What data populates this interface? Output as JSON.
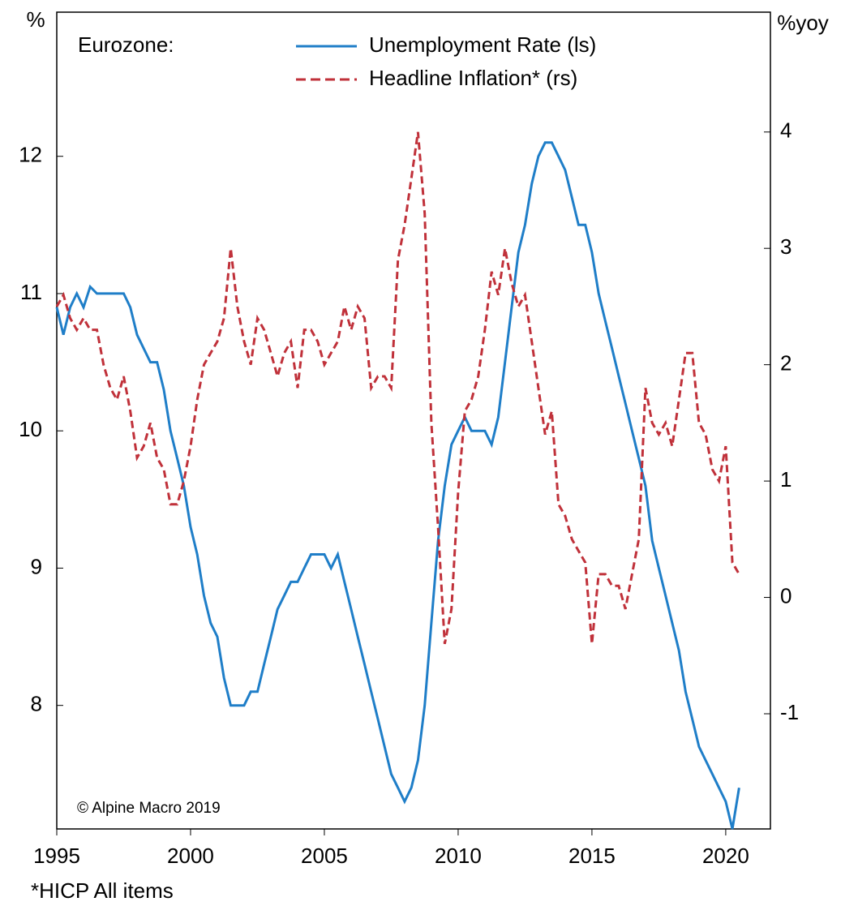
{
  "chart_data": {
    "type": "line",
    "label": "Eurozone:",
    "y_unit": "%",
    "y2_unit": "%yoy",
    "annotation": "© Alpine Macro 2019",
    "footnote": "*HICP All items",
    "x": [
      1995,
      1995.25,
      1995.5,
      1995.75,
      1996,
      1996.25,
      1996.5,
      1996.75,
      1997,
      1997.25,
      1997.5,
      1997.75,
      1998,
      1998.25,
      1998.5,
      1998.75,
      1999,
      1999.25,
      1999.5,
      1999.75,
      2000,
      2000.25,
      2000.5,
      2000.75,
      2001,
      2001.25,
      2001.5,
      2001.75,
      2002,
      2002.25,
      2002.5,
      2002.75,
      2003,
      2003.25,
      2003.5,
      2003.75,
      2004,
      2004.25,
      2004.5,
      2004.75,
      2005,
      2005.25,
      2005.5,
      2005.75,
      2006,
      2006.25,
      2006.5,
      2006.75,
      2007,
      2007.25,
      2007.5,
      2007.75,
      2008,
      2008.25,
      2008.5,
      2008.75,
      2009,
      2009.25,
      2009.5,
      2009.75,
      2010,
      2010.25,
      2010.5,
      2010.75,
      2011,
      2011.25,
      2011.5,
      2011.75,
      2012,
      2012.25,
      2012.5,
      2012.75,
      2013,
      2013.25,
      2013.5,
      2013.75,
      2014,
      2014.25,
      2014.5,
      2014.75,
      2015,
      2015.25,
      2015.5,
      2015.75,
      2016,
      2016.25,
      2016.5,
      2016.75,
      2017,
      2017.25,
      2017.5,
      2017.75,
      2018,
      2018.25,
      2018.5,
      2018.75,
      2019,
      2019.25,
      2019.5,
      2019.75,
      2020,
      2020.25,
      2020.5
    ],
    "series": [
      {
        "name": "Unemployment Rate (ls)",
        "color": "#1f7ec8",
        "dash": false,
        "values": [
          10.9,
          10.7,
          10.9,
          11.0,
          10.9,
          11.05,
          11.0,
          11.0,
          11.0,
          11.0,
          11.0,
          10.9,
          10.7,
          10.6,
          10.5,
          10.5,
          10.3,
          10.0,
          9.8,
          9.6,
          9.3,
          9.1,
          8.8,
          8.6,
          8.5,
          8.2,
          8.0,
          8.0,
          8.0,
          8.1,
          8.1,
          8.3,
          8.5,
          8.7,
          8.8,
          8.9,
          8.9,
          9.0,
          9.1,
          9.1,
          9.1,
          9.0,
          9.1,
          8.9,
          8.7,
          8.5,
          8.3,
          8.1,
          7.9,
          7.7,
          7.5,
          7.4,
          7.3,
          7.4,
          7.6,
          8.0,
          8.6,
          9.2,
          9.6,
          9.9,
          10.0,
          10.1,
          10.0,
          10.0,
          10.0,
          9.9,
          10.1,
          10.5,
          10.9,
          11.3,
          11.5,
          11.8,
          12.0,
          12.1,
          12.1,
          12.0,
          11.9,
          11.7,
          11.5,
          11.5,
          11.3,
          11.0,
          10.8,
          10.6,
          10.4,
          10.2,
          10.0,
          9.8,
          9.6,
          9.2,
          9.0,
          8.8,
          8.6,
          8.4,
          8.1,
          7.9,
          7.7,
          7.6,
          7.5,
          7.4,
          7.3,
          7.1,
          7.4
        ]
      },
      {
        "name": "Headline Inflation* (rs)",
        "color": "#c0313a",
        "dash": true,
        "axis": "y2",
        "values": [
          2.5,
          2.6,
          2.4,
          2.3,
          2.4,
          2.3,
          2.3,
          2.0,
          1.8,
          1.7,
          1.9,
          1.6,
          1.2,
          1.3,
          1.5,
          1.2,
          1.1,
          0.8,
          0.8,
          1.0,
          1.3,
          1.7,
          2.0,
          2.1,
          2.2,
          2.4,
          3.0,
          2.5,
          2.2,
          2.0,
          2.4,
          2.3,
          2.1,
          1.9,
          2.1,
          2.2,
          1.8,
          2.3,
          2.3,
          2.2,
          2.0,
          2.1,
          2.2,
          2.5,
          2.3,
          2.5,
          2.4,
          1.8,
          1.9,
          1.9,
          1.8,
          2.9,
          3.2,
          3.6,
          4.0,
          3.3,
          1.5,
          0.6,
          -0.4,
          -0.1,
          0.9,
          1.6,
          1.7,
          1.9,
          2.3,
          2.8,
          2.6,
          3.0,
          2.7,
          2.5,
          2.6,
          2.2,
          1.8,
          1.4,
          1.6,
          0.8,
          0.7,
          0.5,
          0.4,
          0.3,
          -0.4,
          0.2,
          0.2,
          0.1,
          0.1,
          -0.1,
          0.2,
          0.5,
          1.8,
          1.5,
          1.4,
          1.5,
          1.3,
          1.7,
          2.1,
          2.1,
          1.5,
          1.4,
          1.1,
          1.0,
          1.3,
          0.3,
          0.2
        ]
      }
    ],
    "xlim": [
      1995,
      2021.67
    ],
    "xticks": [
      1995,
      2000,
      2005,
      2010,
      2015,
      2020
    ],
    "ylim": [
      7.1,
      13.05
    ],
    "yticks": [
      8,
      9,
      10,
      11,
      12
    ],
    "y2lim": [
      -1.99,
      5.03
    ],
    "y2ticks": [
      -1,
      0,
      1,
      2,
      3,
      4
    ],
    "grid": false
  }
}
